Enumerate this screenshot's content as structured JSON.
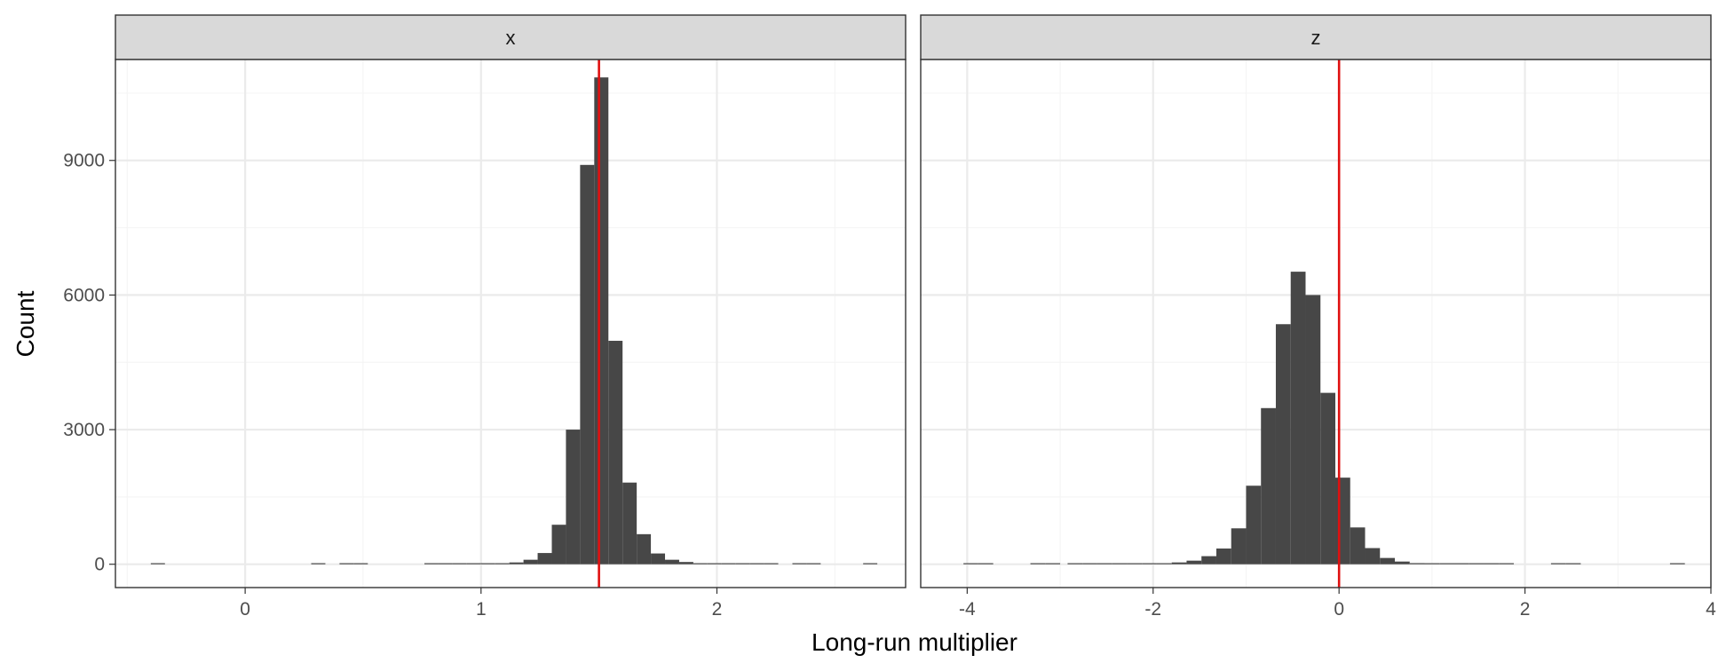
{
  "chart_data": {
    "type": "bar",
    "subtype": "faceted-histogram",
    "xlabel": "Long-run multiplier",
    "ylabel": "Count",
    "ylim": [
      -520,
      11250
    ],
    "yticks": [
      0,
      3000,
      6000,
      9000
    ],
    "y_tick_labels": [
      "0",
      "3000",
      "6000",
      "9000"
    ],
    "grid": true,
    "theme": "bw",
    "colors": {
      "bar_fill": "#474747",
      "reference_line": "#e01010",
      "strip_background": "#d9d9d9",
      "panel_border": "#333333",
      "grid_major": "#ebebeb",
      "grid_minor": "#f5f5f5"
    },
    "facets": [
      {
        "strip_label": "x",
        "xlim": [
          -0.55,
          2.8
        ],
        "xticks": [
          0,
          1,
          2
        ],
        "x_tick_labels": [
          "0",
          "1",
          "2"
        ],
        "reference_line_x": 1.5,
        "bin_width": 0.06,
        "bins": [
          {
            "x": -0.37,
            "count": 5
          },
          {
            "x": 0.31,
            "count": 3
          },
          {
            "x": 0.43,
            "count": 4
          },
          {
            "x": 0.49,
            "count": 3
          },
          {
            "x": 0.79,
            "count": 4
          },
          {
            "x": 0.85,
            "count": 5
          },
          {
            "x": 0.91,
            "count": 6
          },
          {
            "x": 0.97,
            "count": 8
          },
          {
            "x": 1.03,
            "count": 12
          },
          {
            "x": 1.09,
            "count": 20
          },
          {
            "x": 1.15,
            "count": 40
          },
          {
            "x": 1.21,
            "count": 100
          },
          {
            "x": 1.27,
            "count": 250
          },
          {
            "x": 1.33,
            "count": 880
          },
          {
            "x": 1.39,
            "count": 3000
          },
          {
            "x": 1.45,
            "count": 8900
          },
          {
            "x": 1.51,
            "count": 10850
          },
          {
            "x": 1.57,
            "count": 4980
          },
          {
            "x": 1.63,
            "count": 1820
          },
          {
            "x": 1.69,
            "count": 670
          },
          {
            "x": 1.75,
            "count": 240
          },
          {
            "x": 1.81,
            "count": 100
          },
          {
            "x": 1.87,
            "count": 50
          },
          {
            "x": 1.93,
            "count": 20
          },
          {
            "x": 1.99,
            "count": 10
          },
          {
            "x": 2.05,
            "count": 6
          },
          {
            "x": 2.11,
            "count": 5
          },
          {
            "x": 2.17,
            "count": 4
          },
          {
            "x": 2.23,
            "count": 3
          },
          {
            "x": 2.35,
            "count": 3
          },
          {
            "x": 2.41,
            "count": 3
          },
          {
            "x": 2.65,
            "count": 4
          }
        ]
      },
      {
        "strip_label": "z",
        "xlim": [
          -4.5,
          4.0
        ],
        "xticks": [
          -4,
          -2,
          0,
          2,
          4
        ],
        "x_tick_labels": [
          "-4",
          "-2",
          "0",
          "2",
          "4"
        ],
        "reference_line_x": 0,
        "bin_width": 0.16,
        "bins": [
          {
            "x": -3.96,
            "count": 3
          },
          {
            "x": -3.8,
            "count": 3
          },
          {
            "x": -3.24,
            "count": 3
          },
          {
            "x": -3.08,
            "count": 3
          },
          {
            "x": -2.84,
            "count": 3
          },
          {
            "x": -2.68,
            "count": 3
          },
          {
            "x": -2.52,
            "count": 3
          },
          {
            "x": -2.36,
            "count": 4
          },
          {
            "x": -2.2,
            "count": 5
          },
          {
            "x": -2.04,
            "count": 10
          },
          {
            "x": -1.88,
            "count": 20
          },
          {
            "x": -1.72,
            "count": 40
          },
          {
            "x": -1.56,
            "count": 80
          },
          {
            "x": -1.4,
            "count": 180
          },
          {
            "x": -1.24,
            "count": 350
          },
          {
            "x": -1.08,
            "count": 800
          },
          {
            "x": -0.92,
            "count": 1750
          },
          {
            "x": -0.76,
            "count": 3480
          },
          {
            "x": -0.6,
            "count": 5350
          },
          {
            "x": -0.44,
            "count": 6520
          },
          {
            "x": -0.28,
            "count": 6000
          },
          {
            "x": -0.12,
            "count": 3820
          },
          {
            "x": 0.04,
            "count": 1930
          },
          {
            "x": 0.2,
            "count": 820
          },
          {
            "x": 0.36,
            "count": 360
          },
          {
            "x": 0.52,
            "count": 140
          },
          {
            "x": 0.68,
            "count": 60
          },
          {
            "x": 0.84,
            "count": 25
          },
          {
            "x": 1.0,
            "count": 10
          },
          {
            "x": 1.16,
            "count": 6
          },
          {
            "x": 1.32,
            "count": 4
          },
          {
            "x": 1.48,
            "count": 3
          },
          {
            "x": 1.64,
            "count": 3
          },
          {
            "x": 1.8,
            "count": 3
          },
          {
            "x": 2.36,
            "count": 3
          },
          {
            "x": 2.52,
            "count": 3
          },
          {
            "x": 3.64,
            "count": 3
          }
        ]
      }
    ]
  }
}
